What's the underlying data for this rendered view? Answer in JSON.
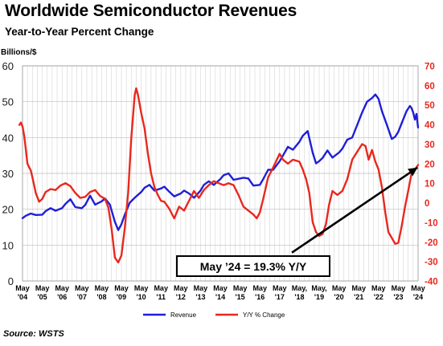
{
  "title": "Worldwide Semiconductor Revenues",
  "subtitle": "Year-to-Year Percent Change",
  "source": "Source: WSTS",
  "callout": "May ’24 = 19.3% Y/Y",
  "colors": {
    "revenue": "#1f1fd8",
    "yoy": "#e8281e",
    "right_axis": "#e8281e",
    "grid": "#d6d6d6",
    "background": "#ffffff"
  },
  "chart_data": {
    "type": "line",
    "title": "Worldwide Semiconductor Revenues",
    "subtitle": "Year-to-Year Percent Change",
    "ylabel": "Billions/$",
    "y_left_lim": [
      0,
      60
    ],
    "y_left_ticks": [
      "0",
      "10",
      "20",
      "30",
      "40",
      "50",
      "60"
    ],
    "y_right_lim": [
      -40,
      70
    ],
    "y_right_ticks": [
      "-40",
      "-30",
      "-20",
      "-10",
      "0",
      "10",
      "20",
      "30",
      "40",
      "50",
      "60",
      "70"
    ],
    "x_ticks": [
      {
        "top": "May",
        "bottom": "'04"
      },
      {
        "top": "May",
        "bottom": "'05"
      },
      {
        "top": "May",
        "bottom": "'06"
      },
      {
        "top": "May",
        "bottom": "'07"
      },
      {
        "top": "May",
        "bottom": "'08"
      },
      {
        "top": "May",
        "bottom": "'09"
      },
      {
        "top": "May",
        "bottom": "'10"
      },
      {
        "top": "May",
        "bottom": "'11"
      },
      {
        "top": "May",
        "bottom": "'12"
      },
      {
        "top": "May",
        "bottom": "'13"
      },
      {
        "top": "May",
        "bottom": "'14"
      },
      {
        "top": "May",
        "bottom": "'15"
      },
      {
        "top": "May",
        "bottom": "'16"
      },
      {
        "top": "May",
        "bottom": "'17"
      },
      {
        "top": "May,",
        "bottom": "'18"
      },
      {
        "top": "May,",
        "bottom": "'19"
      },
      {
        "top": "May",
        "bottom": "'20"
      },
      {
        "top": "May",
        "bottom": "'21"
      },
      {
        "top": "May",
        "bottom": "'22"
      },
      {
        "top": "May",
        "bottom": "'23"
      },
      {
        "top": "May",
        "bottom": "'24"
      }
    ],
    "grid": true,
    "legend_position": "bottom-center",
    "series": [
      {
        "name": "Revenue",
        "axis": "left",
        "points": [
          [
            2004.33,
            17.5
          ],
          [
            2004.5,
            18.2
          ],
          [
            2004.75,
            18.8
          ],
          [
            2005.0,
            18.4
          ],
          [
            2005.33,
            18.5
          ],
          [
            2005.5,
            19.5
          ],
          [
            2005.75,
            20.3
          ],
          [
            2006.0,
            19.6
          ],
          [
            2006.33,
            20.3
          ],
          [
            2006.5,
            21.5
          ],
          [
            2006.75,
            22.8
          ],
          [
            2007.0,
            20.6
          ],
          [
            2007.33,
            20.3
          ],
          [
            2007.5,
            21.2
          ],
          [
            2007.75,
            23.8
          ],
          [
            2008.0,
            21.3
          ],
          [
            2008.33,
            22.2
          ],
          [
            2008.5,
            23.0
          ],
          [
            2008.75,
            21.3
          ],
          [
            2009.0,
            16.5
          ],
          [
            2009.17,
            14.2
          ],
          [
            2009.33,
            15.8
          ],
          [
            2009.5,
            18.5
          ],
          [
            2009.75,
            21.8
          ],
          [
            2010.0,
            23.2
          ],
          [
            2010.33,
            24.8
          ],
          [
            2010.5,
            26.0
          ],
          [
            2010.75,
            26.8
          ],
          [
            2011.0,
            25.2
          ],
          [
            2011.33,
            25.8
          ],
          [
            2011.5,
            26.3
          ],
          [
            2011.75,
            24.9
          ],
          [
            2012.0,
            23.6
          ],
          [
            2012.33,
            24.4
          ],
          [
            2012.5,
            25.2
          ],
          [
            2012.75,
            24.4
          ],
          [
            2013.0,
            23.2
          ],
          [
            2013.33,
            25.2
          ],
          [
            2013.5,
            26.8
          ],
          [
            2013.75,
            27.8
          ],
          [
            2014.0,
            26.8
          ],
          [
            2014.33,
            28.4
          ],
          [
            2014.5,
            29.5
          ],
          [
            2014.75,
            30.0
          ],
          [
            2015.0,
            28.2
          ],
          [
            2015.33,
            28.6
          ],
          [
            2015.5,
            28.8
          ],
          [
            2015.75,
            28.6
          ],
          [
            2016.0,
            26.6
          ],
          [
            2016.33,
            26.8
          ],
          [
            2016.5,
            28.4
          ],
          [
            2016.75,
            31.0
          ],
          [
            2017.0,
            31.0
          ],
          [
            2017.33,
            33.4
          ],
          [
            2017.5,
            35.0
          ],
          [
            2017.75,
            37.4
          ],
          [
            2018.0,
            36.6
          ],
          [
            2018.33,
            38.8
          ],
          [
            2018.5,
            40.5
          ],
          [
            2018.75,
            41.8
          ],
          [
            2019.0,
            35.8
          ],
          [
            2019.17,
            32.8
          ],
          [
            2019.33,
            33.4
          ],
          [
            2019.5,
            34.3
          ],
          [
            2019.75,
            36.4
          ],
          [
            2020.0,
            34.4
          ],
          [
            2020.33,
            35.8
          ],
          [
            2020.5,
            36.9
          ],
          [
            2020.75,
            39.4
          ],
          [
            2021.0,
            40.0
          ],
          [
            2021.33,
            44.6
          ],
          [
            2021.5,
            47.0
          ],
          [
            2021.75,
            50.0
          ],
          [
            2022.0,
            51.0
          ],
          [
            2022.17,
            52.0
          ],
          [
            2022.33,
            50.8
          ],
          [
            2022.5,
            47.4
          ],
          [
            2022.75,
            43.6
          ],
          [
            2023.0,
            39.6
          ],
          [
            2023.17,
            40.2
          ],
          [
            2023.33,
            41.6
          ],
          [
            2023.5,
            44.0
          ],
          [
            2023.75,
            47.4
          ],
          [
            2023.92,
            48.8
          ],
          [
            2024.0,
            48.2
          ],
          [
            2024.08,
            47.0
          ],
          [
            2024.17,
            45.0
          ],
          [
            2024.25,
            46.6
          ],
          [
            2024.33,
            42.8
          ]
        ]
      },
      {
        "name": "Y/Y % Change",
        "axis": "right",
        "points": [
          [
            2004.17,
            39.8
          ],
          [
            2004.25,
            41.0
          ],
          [
            2004.33,
            39.0
          ],
          [
            2004.42,
            34.0
          ],
          [
            2004.5,
            27.0
          ],
          [
            2004.58,
            20.0
          ],
          [
            2004.67,
            18.0
          ],
          [
            2004.75,
            16.5
          ],
          [
            2004.83,
            13.0
          ],
          [
            2005.0,
            5.0
          ],
          [
            2005.17,
            0.5
          ],
          [
            2005.33,
            2.0
          ],
          [
            2005.5,
            5.5
          ],
          [
            2005.75,
            7.0
          ],
          [
            2006.0,
            6.5
          ],
          [
            2006.25,
            8.8
          ],
          [
            2006.5,
            10.0
          ],
          [
            2006.75,
            8.5
          ],
          [
            2007.0,
            5.0
          ],
          [
            2007.25,
            2.5
          ],
          [
            2007.5,
            3.0
          ],
          [
            2007.75,
            5.5
          ],
          [
            2008.0,
            6.5
          ],
          [
            2008.25,
            3.5
          ],
          [
            2008.5,
            2.0
          ],
          [
            2008.67,
            -2.5
          ],
          [
            2008.83,
            -13.0
          ],
          [
            2009.0,
            -28.0
          ],
          [
            2009.17,
            -30.5
          ],
          [
            2009.33,
            -27.0
          ],
          [
            2009.5,
            -13.0
          ],
          [
            2009.67,
            5.0
          ],
          [
            2009.83,
            33.0
          ],
          [
            2010.0,
            55.0
          ],
          [
            2010.08,
            58.5
          ],
          [
            2010.17,
            55.0
          ],
          [
            2010.33,
            46.0
          ],
          [
            2010.5,
            38.0
          ],
          [
            2010.67,
            25.0
          ],
          [
            2010.83,
            15.0
          ],
          [
            2011.0,
            8.0
          ],
          [
            2011.17,
            4.0
          ],
          [
            2011.33,
            1.0
          ],
          [
            2011.5,
            0.5
          ],
          [
            2011.75,
            -3.0
          ],
          [
            2012.0,
            -8.0
          ],
          [
            2012.25,
            -2.0
          ],
          [
            2012.5,
            -4.0
          ],
          [
            2012.75,
            1.0
          ],
          [
            2013.0,
            6.0
          ],
          [
            2013.25,
            2.5
          ],
          [
            2013.5,
            6.5
          ],
          [
            2013.75,
            9.0
          ],
          [
            2014.0,
            11.0
          ],
          [
            2014.25,
            10.0
          ],
          [
            2014.5,
            9.0
          ],
          [
            2014.75,
            10.0
          ],
          [
            2015.0,
            9.0
          ],
          [
            2015.25,
            4.0
          ],
          [
            2015.5,
            -2.0
          ],
          [
            2015.75,
            -4.0
          ],
          [
            2016.0,
            -6.0
          ],
          [
            2016.17,
            -8.0
          ],
          [
            2016.33,
            -5.0
          ],
          [
            2016.5,
            2.0
          ],
          [
            2016.75,
            13.0
          ],
          [
            2017.0,
            18.0
          ],
          [
            2017.33,
            25.0
          ],
          [
            2017.5,
            22.0
          ],
          [
            2017.75,
            20.0
          ],
          [
            2018.0,
            22.0
          ],
          [
            2018.33,
            21.0
          ],
          [
            2018.5,
            17.0
          ],
          [
            2018.67,
            12.0
          ],
          [
            2018.83,
            5.0
          ],
          [
            2019.0,
            -10.0
          ],
          [
            2019.17,
            -15.0
          ],
          [
            2019.33,
            -17.0
          ],
          [
            2019.5,
            -16.0
          ],
          [
            2019.67,
            -11.0
          ],
          [
            2019.83,
            -1.0
          ],
          [
            2020.0,
            6.0
          ],
          [
            2020.25,
            4.0
          ],
          [
            2020.5,
            6.0
          ],
          [
            2020.75,
            12.0
          ],
          [
            2021.0,
            22.0
          ],
          [
            2021.25,
            26.0
          ],
          [
            2021.5,
            30.0
          ],
          [
            2021.67,
            29.0
          ],
          [
            2021.83,
            22.0
          ],
          [
            2022.0,
            27.0
          ],
          [
            2022.17,
            21.0
          ],
          [
            2022.33,
            17.0
          ],
          [
            2022.5,
            8.0
          ],
          [
            2022.67,
            -5.0
          ],
          [
            2022.83,
            -15.0
          ],
          [
            2023.0,
            -18.0
          ],
          [
            2023.17,
            -21.0
          ],
          [
            2023.33,
            -20.5
          ],
          [
            2023.5,
            -12.0
          ],
          [
            2023.67,
            -2.0
          ],
          [
            2023.83,
            6.0
          ],
          [
            2024.0,
            15.0
          ],
          [
            2024.17,
            17.0
          ],
          [
            2024.33,
            19.3
          ]
        ]
      }
    ],
    "trend_arrow": {
      "from": [
        2017.95,
        -25.5
      ],
      "to": [
        2024.3,
        18.0
      ],
      "axis": "right"
    }
  }
}
